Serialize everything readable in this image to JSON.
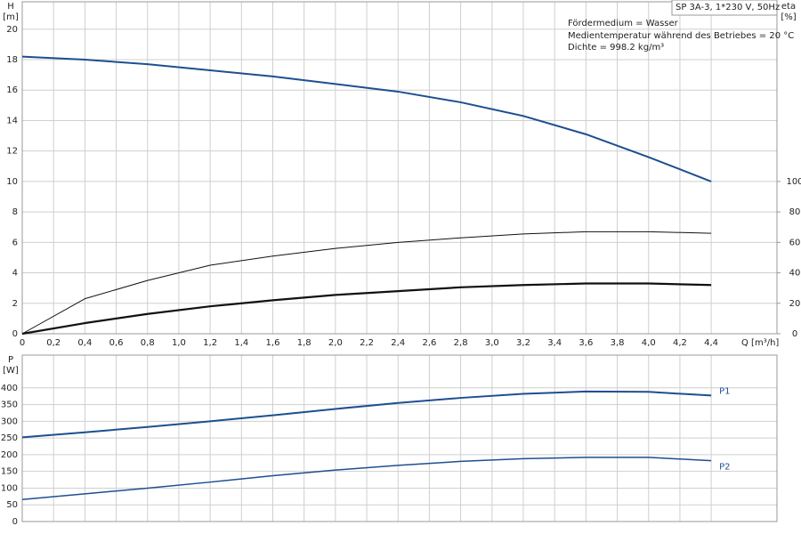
{
  "header": "SP 3A-3, 1*230 V, 50Hz",
  "notes": [
    "Fördermedium = Wasser",
    "Medientemperatur während des Betriebes = 20 °C",
    "Dichte = 998.2 kg/m³"
  ],
  "chart_data": [
    {
      "type": "line",
      "y_label": "H",
      "y_unit": "[m]",
      "y2_label": "eta",
      "y2_unit": "[%]",
      "x_label": "Q [m³/h]",
      "xlim": [
        0,
        4.82
      ],
      "ylim": [
        0,
        21.8
      ],
      "y2lim": [
        0,
        218
      ],
      "grid": true,
      "xticks": [
        0,
        {
          "value": 0.2,
          "label": "0,2"
        },
        {
          "value": 0.4,
          "label": "0,4"
        },
        {
          "value": 0.6,
          "label": "0,6"
        },
        {
          "value": 0.8,
          "label": "0,8"
        },
        {
          "value": 1.0,
          "label": "1,0"
        },
        {
          "value": 1.2,
          "label": "1,2"
        },
        {
          "value": 1.4,
          "label": "1,4"
        },
        {
          "value": 1.6,
          "label": "1,6"
        },
        {
          "value": 1.8,
          "label": "1,8"
        },
        {
          "value": 2.0,
          "label": "2,0"
        },
        {
          "value": 2.2,
          "label": "2,2"
        },
        {
          "value": 2.4,
          "label": "2,4"
        },
        {
          "value": 2.6,
          "label": "2,6"
        },
        {
          "value": 2.8,
          "label": "2,8"
        },
        {
          "value": 3.0,
          "label": "3,0"
        },
        {
          "value": 3.2,
          "label": "3,2"
        },
        {
          "value": 3.4,
          "label": "3,4"
        },
        {
          "value": 3.6,
          "label": "3,6"
        },
        {
          "value": 3.8,
          "label": "3,8"
        },
        {
          "value": 4.0,
          "label": "4,0"
        },
        {
          "value": 4.2,
          "label": "4,2"
        },
        {
          "value": 4.4,
          "label": "4,4"
        }
      ],
      "yticks": [
        0,
        2,
        4,
        6,
        8,
        10,
        12,
        14,
        16,
        18,
        20
      ],
      "y2ticks": [
        0,
        20,
        40,
        60,
        80,
        100
      ],
      "x": [
        0,
        0.4,
        0.8,
        1.2,
        1.6,
        2.0,
        2.4,
        2.8,
        3.2,
        3.6,
        4.0,
        4.4
      ],
      "series": [
        {
          "color": "#1d4f91",
          "line_width": 2,
          "values": [
            18.2,
            18.0,
            17.7,
            17.3,
            16.9,
            16.4,
            15.9,
            15.2,
            14.3,
            13.1,
            11.6,
            10.0
          ]
        },
        {
          "color": "#111111",
          "line_width": 1,
          "axis": "y2",
          "values": [
            0,
            23,
            35,
            45,
            51,
            56,
            60,
            63,
            65.5,
            67,
            67,
            66
          ]
        },
        {
          "color": "#111111",
          "line_width": 2.2,
          "axis": "y2",
          "values": [
            0,
            7,
            13,
            18,
            22,
            25.5,
            28,
            30.5,
            32,
            33,
            33,
            32
          ]
        }
      ]
    },
    {
      "type": "line",
      "y_label": "P",
      "y_unit": "[W]",
      "xlim": [
        0,
        4.82
      ],
      "ylim": [
        0,
        498
      ],
      "grid": true,
      "xtick_labels": false,
      "xticks": [
        0,
        0.2,
        0.4,
        0.6,
        0.8,
        1.0,
        1.2,
        1.4,
        1.6,
        1.8,
        2.0,
        2.2,
        2.4,
        2.6,
        2.8,
        3.0,
        3.2,
        3.4,
        3.6,
        3.8,
        4.0,
        4.2,
        4.4
      ],
      "yticks": [
        0,
        50,
        100,
        150,
        200,
        250,
        300,
        350,
        400
      ],
      "x": [
        0,
        0.4,
        0.8,
        1.2,
        1.6,
        2.0,
        2.4,
        2.8,
        3.2,
        3.6,
        4.0,
        4.4
      ],
      "series": [
        {
          "name": "P1",
          "color": "#1d4f91",
          "line_width": 2,
          "values": [
            252,
            267,
            283,
            300,
            318,
            337,
            355,
            370,
            382,
            389,
            388,
            377
          ]
        },
        {
          "name": "P2",
          "color": "#1d4f91",
          "line_width": 1.5,
          "values": [
            66,
            83,
            100,
            118,
            137,
            154,
            168,
            180,
            188,
            192,
            192,
            182
          ]
        }
      ]
    }
  ]
}
